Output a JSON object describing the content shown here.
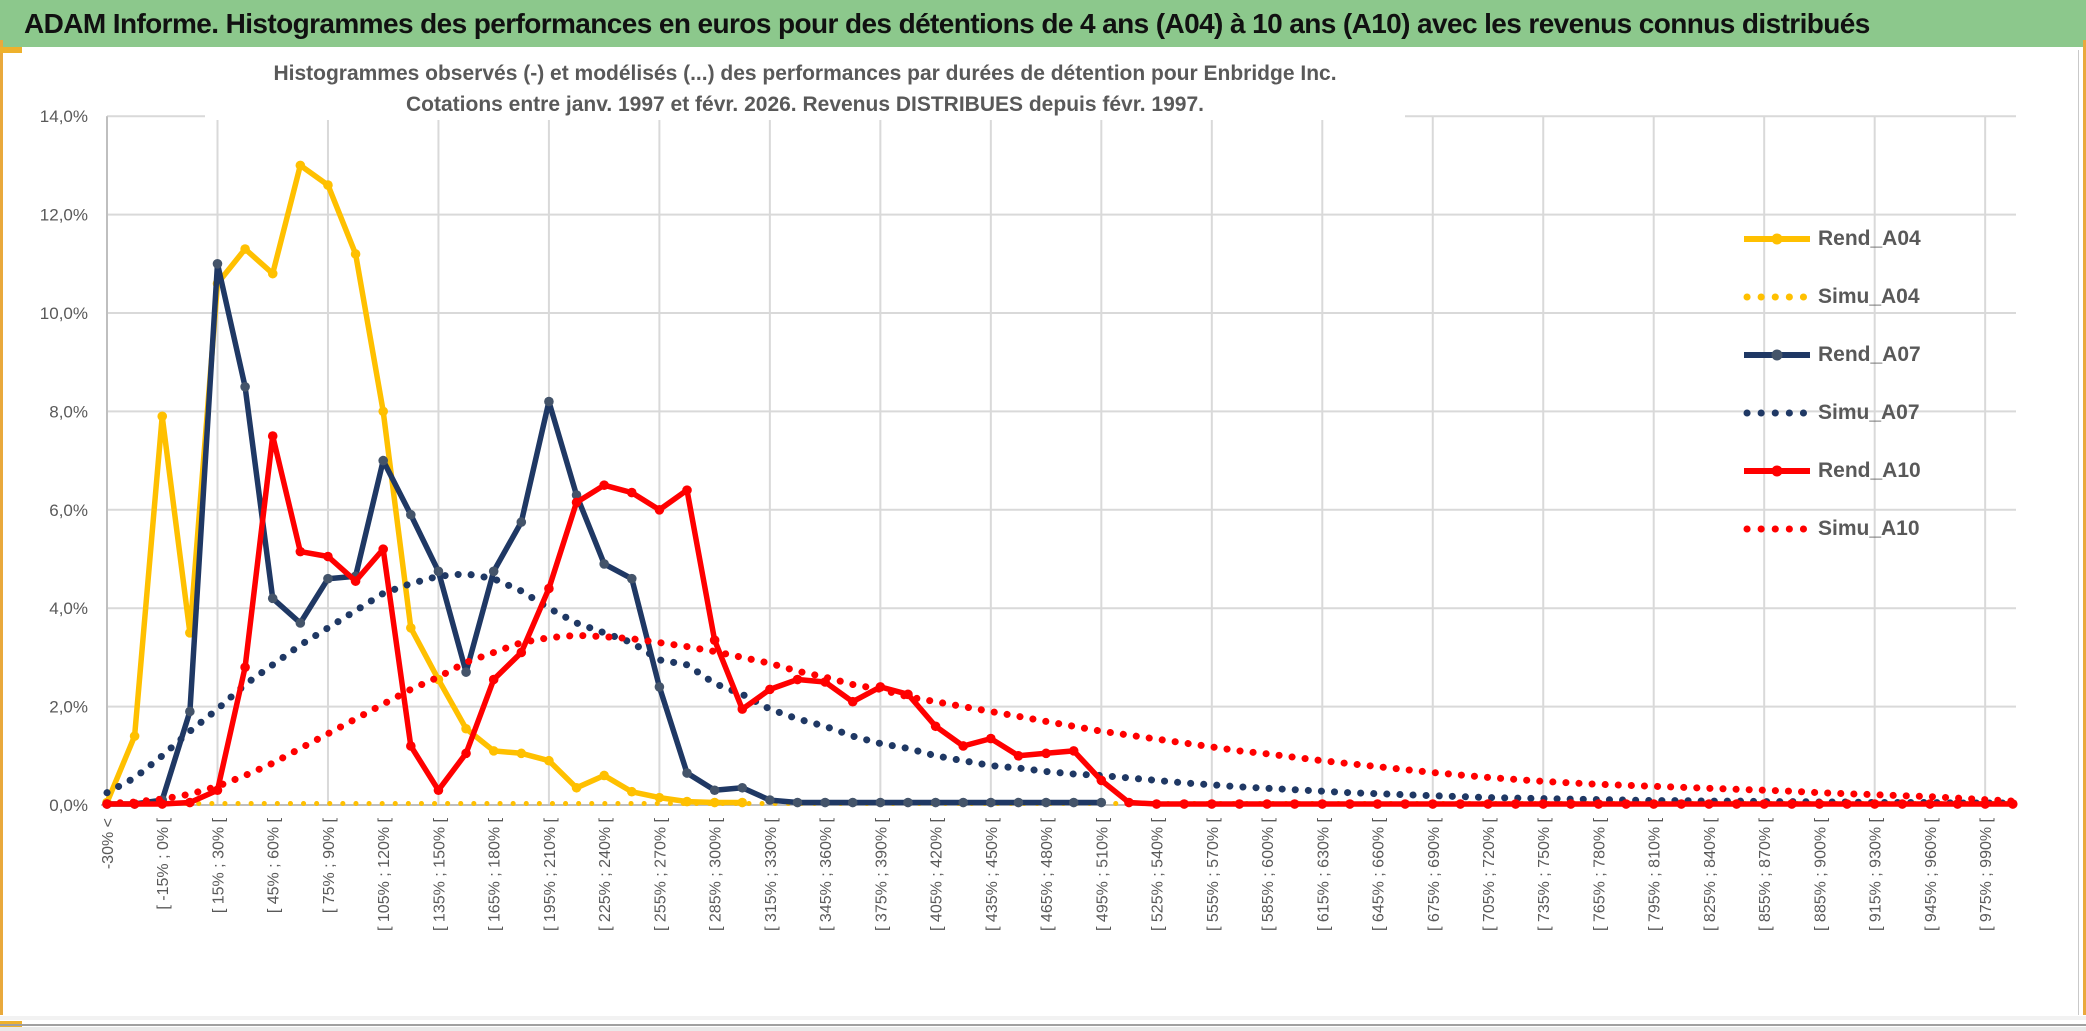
{
  "header": {
    "title": "ADAM Informe. Histogrammes des performances en euros pour des détentions de 4 ans (A04) à 10 ans (A10) avec les revenus connus distribués"
  },
  "chart_data": {
    "type": "line",
    "title_line1": "Histogrammes observés (-) et modélisés (...) des performances par durées de détention pour Enbridge Inc.",
    "title_line2": "Cotations entre janv. 1997 et févr. 2026. Revenus DISTRIBUES depuis févr. 1997.",
    "ylabel": "",
    "xlabel": "",
    "ylim": [
      0,
      14
    ],
    "y_tick_labels": [
      "0,0%",
      "2,0%",
      "4,0%",
      "6,0%",
      "8,0%",
      "10,0%",
      "12,0%",
      "14,0%"
    ],
    "grid": true,
    "legend_position": "right",
    "colors": {
      "gold": "#FFC000",
      "navy": "#1F3864",
      "navy_marker": "#44546A",
      "red": "#FF0000",
      "grid": "#D9D9D9",
      "axis": "#BFBFBF",
      "text": "#595959",
      "banner_green": "#8CC88C",
      "frame_gold": "#E9A93C"
    },
    "categories": [
      "-30% <",
      "[ -15% ; 0% [",
      "[ 15% ; 30% [",
      "[ 45% ; 60% [",
      "[ 75% ; 90% [",
      "[ 105% ; 120% [",
      "[ 135% ; 150% [",
      "[ 165% ; 180% [",
      "[ 195% ; 210% [",
      "[ 225% ; 240% [",
      "[ 255% ; 270% [",
      "[ 285% ; 300% [",
      "[ 315% ; 330% [",
      "[ 345% ; 360% [",
      "[ 375% ; 390% [",
      "[ 405% ; 420% [",
      "[ 435% ; 450% [",
      "[ 465% ; 480% [",
      "[ 495% ; 510% [",
      "[ 525% ; 540% [",
      "[ 555% ; 570% [",
      "[ 585% ; 600% [",
      "[ 615% ; 630% [",
      "[ 645% ; 660% [",
      "[ 675% ; 690% [",
      "[ 705% ; 720% [",
      "[ 735% ; 750% [",
      "[ 765% ; 780% [",
      "[ 795% ; 810% [",
      "[ 825% ; 840% [",
      "[ 855% ; 870% [",
      "[ 885% ; 900% [",
      "[ 915% ; 930% [",
      "[ 945% ; 960% [",
      "[ 975% ; 990% ["
    ],
    "note": "categories label every second bin; 70 bins of 15% width starting at '<-30%'",
    "series": [
      {
        "name": "Rend_A04",
        "color": "#FFC000",
        "marker_color": "#FFC000",
        "style": "solid",
        "values": [
          0.05,
          1.4,
          7.9,
          3.5,
          10.6,
          11.3,
          10.8,
          13.0,
          12.6,
          11.2,
          8.0,
          3.6,
          2.55,
          1.55,
          1.1,
          1.05,
          0.9,
          0.35,
          0.6,
          0.27,
          0.15,
          0.07,
          0.05,
          0.05,
          null,
          null,
          null,
          null,
          null,
          null,
          null,
          null,
          null,
          null,
          null,
          null,
          null,
          null,
          null,
          null,
          null,
          null,
          null,
          null,
          null,
          null,
          null,
          null,
          null,
          null,
          null,
          null,
          null,
          null,
          null,
          null,
          null,
          null,
          null,
          null,
          null,
          null,
          null,
          null,
          null,
          null,
          null,
          null,
          null,
          null
        ]
      },
      {
        "name": "Simu_A04",
        "color": "#FFC000",
        "style": "dotted",
        "values": [
          0.03,
          0.03,
          0.03,
          0.03,
          0.03,
          0.03,
          0.03,
          0.03,
          0.03,
          0.03,
          0.03,
          0.03,
          0.03,
          0.03,
          0.03,
          0.03,
          0.03,
          0.03,
          0.03,
          0.03,
          0.03,
          0.03,
          0.03,
          0.03,
          0.03,
          0.03,
          0.03,
          0.03,
          0.03,
          0.03,
          0.03,
          0.03,
          0.03,
          0.03,
          0.03,
          0.03,
          0.03,
          0.03,
          0.03,
          0.03,
          0.03,
          0.03,
          0.03,
          0.03,
          0.03,
          0.03,
          0.03,
          0.03,
          0.03,
          0.03,
          0.03,
          0.03,
          0.03,
          0.03,
          0.03,
          0.03,
          0.03,
          0.03,
          0.03,
          0.03,
          0.03,
          0.03,
          0.03,
          0.03,
          0.03,
          0.03,
          0.03,
          0.03,
          0.03,
          0.03
        ]
      },
      {
        "name": "Rend_A07",
        "color": "#1F3864",
        "marker_color": "#44546A",
        "style": "solid",
        "values": [
          0.02,
          0.02,
          0.1,
          1.9,
          11.0,
          8.5,
          4.2,
          3.7,
          4.6,
          4.65,
          7.0,
          5.9,
          4.75,
          2.7,
          4.75,
          5.75,
          8.2,
          6.3,
          4.9,
          4.6,
          2.4,
          0.65,
          0.3,
          0.35,
          0.1,
          0.05,
          0.05,
          0.05,
          0.05,
          0.05,
          0.05,
          0.05,
          0.05,
          0.05,
          0.05,
          0.05,
          0.05,
          null,
          null,
          null,
          null,
          null,
          null,
          null,
          null,
          null,
          null,
          null,
          null,
          null,
          null,
          null,
          null,
          null,
          null,
          null,
          null,
          null,
          null,
          null,
          null,
          null,
          null,
          null,
          null,
          null,
          null,
          null,
          null,
          null
        ]
      },
      {
        "name": "Simu_A07",
        "color": "#1F3864",
        "style": "dotted",
        "values": [
          0.25,
          0.55,
          1.0,
          1.5,
          1.95,
          2.45,
          2.85,
          3.25,
          3.6,
          3.95,
          4.3,
          4.5,
          4.65,
          4.7,
          4.6,
          4.35,
          4.0,
          3.7,
          3.5,
          3.3,
          2.95,
          2.85,
          2.47,
          2.25,
          1.95,
          1.75,
          1.6,
          1.4,
          1.25,
          1.15,
          1.0,
          0.9,
          0.8,
          0.75,
          0.68,
          0.63,
          0.6,
          0.55,
          0.5,
          0.45,
          0.41,
          0.37,
          0.34,
          0.31,
          0.28,
          0.25,
          0.23,
          0.21,
          0.19,
          0.17,
          0.15,
          0.14,
          0.13,
          0.12,
          0.11,
          0.1,
          0.09,
          0.09,
          0.08,
          0.08,
          0.07,
          0.07,
          0.06,
          0.06,
          0.05,
          0.05,
          0.05,
          0.04,
          0.04,
          0.04
        ]
      },
      {
        "name": "Rend_A10",
        "color": "#FF0000",
        "marker_color": "#FF0000",
        "style": "solid",
        "values": [
          0.02,
          0.02,
          0.02,
          0.05,
          0.3,
          2.8,
          7.5,
          5.15,
          5.05,
          4.55,
          5.2,
          1.2,
          0.3,
          1.05,
          2.55,
          3.1,
          4.4,
          6.15,
          6.5,
          6.35,
          6.0,
          6.4,
          3.35,
          1.95,
          2.35,
          2.55,
          2.5,
          2.1,
          2.4,
          2.25,
          1.6,
          1.2,
          1.35,
          1.0,
          1.05,
          1.1,
          0.5,
          0.05,
          0.02,
          0.02,
          0.02,
          0.02,
          0.02,
          0.02,
          0.02,
          0.02,
          0.02,
          0.02,
          0.02,
          0.02,
          0.02,
          0.02,
          0.02,
          0.02,
          0.02,
          0.02,
          0.02,
          0.02,
          0.02,
          0.02,
          0.02,
          0.02,
          0.02,
          0.02,
          0.02,
          0.02,
          0.02,
          0.02,
          0.02,
          0.02
        ]
      },
      {
        "name": "Simu_A10",
        "color": "#FF0000",
        "style": "dotted",
        "values": [
          0.03,
          0.06,
          0.12,
          0.22,
          0.38,
          0.6,
          0.85,
          1.15,
          1.45,
          1.75,
          2.05,
          2.35,
          2.6,
          2.9,
          3.1,
          3.3,
          3.4,
          3.45,
          3.42,
          3.38,
          3.3,
          3.22,
          3.12,
          3.0,
          2.88,
          2.72,
          2.6,
          2.45,
          2.35,
          2.2,
          2.1,
          2.0,
          1.9,
          1.8,
          1.7,
          1.6,
          1.5,
          1.42,
          1.34,
          1.26,
          1.18,
          1.1,
          1.04,
          0.97,
          0.9,
          0.84,
          0.78,
          0.72,
          0.66,
          0.61,
          0.56,
          0.52,
          0.48,
          0.45,
          0.42,
          0.4,
          0.38,
          0.36,
          0.34,
          0.32,
          0.3,
          0.28,
          0.25,
          0.23,
          0.21,
          0.19,
          0.17,
          0.14,
          0.11,
          0.08
        ]
      }
    ]
  }
}
